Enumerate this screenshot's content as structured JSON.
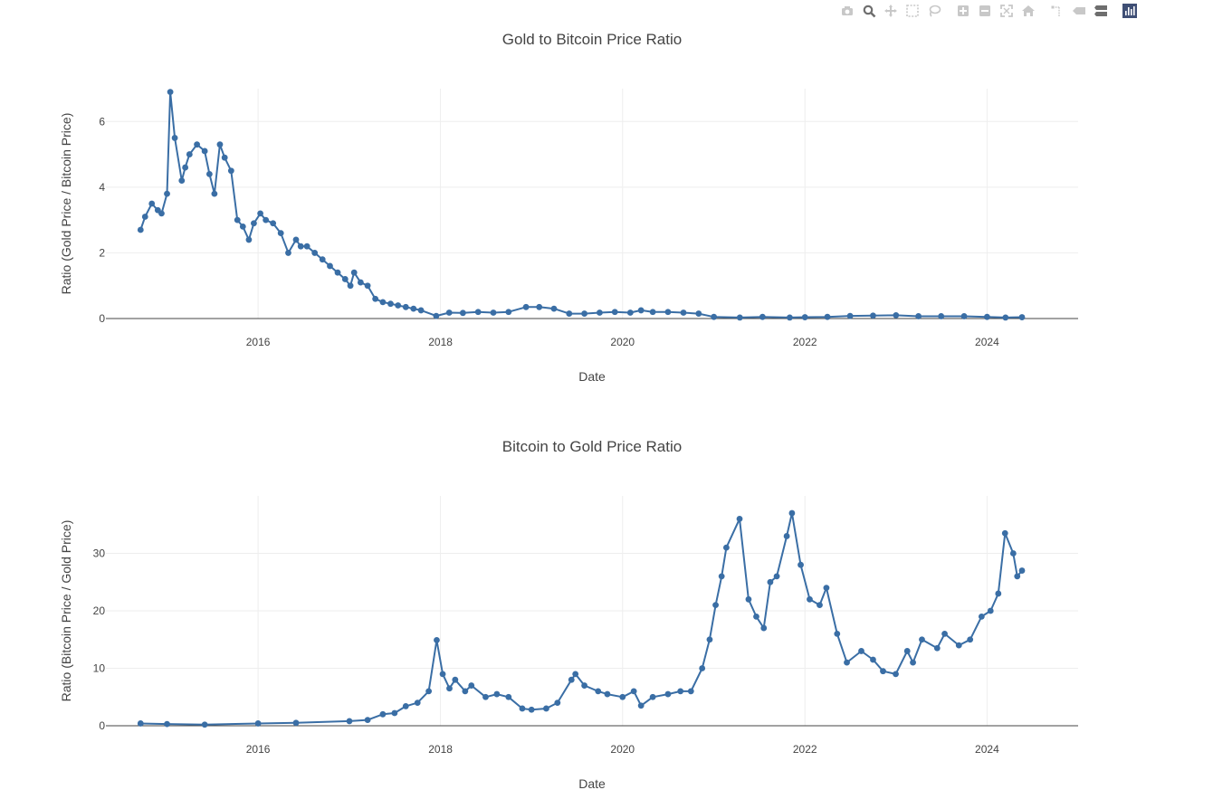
{
  "modebar": {
    "icons": [
      "camera-icon",
      "zoom-icon",
      "pan-icon",
      "box-select-icon",
      "lasso-select-icon",
      "zoom-in-icon",
      "zoom-out-icon",
      "autoscale-icon",
      "reset-axes-icon",
      "spike-lines-icon",
      "hover-closest-icon",
      "hover-compare-icon",
      "plotly-logo-icon"
    ]
  },
  "colors": {
    "series": "#3a6ea5",
    "grid": "#eeeeee",
    "axis_line": "#444444",
    "text": "#444444",
    "modebar_icon": "#c8c8c8",
    "modebar_active": "#6e6e6e"
  },
  "chart_data": [
    {
      "type": "line",
      "mode": "lines+markers",
      "title": "Gold to Bitcoin Price Ratio",
      "xlabel": "Date",
      "ylabel": "Ratio (Gold Price / Bitcoin Price)",
      "xlim": [
        "2014-05-01",
        "2024-12-31"
      ],
      "ylim": [
        0,
        7
      ],
      "xticks": [
        "2016",
        "2018",
        "2020",
        "2022",
        "2024"
      ],
      "yticks": [
        "0",
        "2",
        "4",
        "6"
      ],
      "grid": true,
      "legend": "none",
      "series": [
        {
          "x": [
            "2014-09-17",
            "2014-10-05",
            "2014-11-01",
            "2014-11-25",
            "2014-12-10",
            "2015-01-01",
            "2015-01-14",
            "2015-02-01",
            "2015-03-01",
            "2015-03-15",
            "2015-04-01",
            "2015-05-01",
            "2015-06-01",
            "2015-06-20",
            "2015-07-10",
            "2015-08-01",
            "2015-08-20",
            "2015-09-15",
            "2015-10-10",
            "2015-11-01",
            "2015-11-25",
            "2015-12-15",
            "2016-01-10",
            "2016-02-01",
            "2016-03-01",
            "2016-04-01",
            "2016-05-01",
            "2016-06-01",
            "2016-06-20",
            "2016-07-15",
            "2016-08-15",
            "2016-09-15",
            "2016-10-15",
            "2016-11-15",
            "2016-12-15",
            "2017-01-05",
            "2017-01-20",
            "2017-02-15",
            "2017-03-15",
            "2017-04-15",
            "2017-05-15",
            "2017-06-15",
            "2017-07-15",
            "2017-08-15",
            "2017-09-15",
            "2017-10-15",
            "2017-12-15",
            "2018-02-05",
            "2018-04-01",
            "2018-06-01",
            "2018-08-01",
            "2018-10-01",
            "2018-12-10",
            "2019-02-01",
            "2019-04-01",
            "2019-06-01",
            "2019-08-01",
            "2019-10-01",
            "2019-12-01",
            "2020-02-01",
            "2020-03-15",
            "2020-05-01",
            "2020-07-01",
            "2020-09-01",
            "2020-11-01",
            "2021-01-01",
            "2021-04-15",
            "2021-07-15",
            "2021-11-01",
            "2022-01-01",
            "2022-04-01",
            "2022-07-01",
            "2022-10-01",
            "2023-01-01",
            "2023-04-01",
            "2023-07-01",
            "2023-10-01",
            "2024-01-01",
            "2024-03-15",
            "2024-05-20"
          ],
          "y": [
            2.7,
            3.1,
            3.5,
            3.3,
            3.2,
            3.8,
            6.9,
            5.5,
            4.2,
            4.6,
            5.0,
            5.3,
            5.1,
            4.4,
            3.8,
            5.3,
            4.9,
            4.5,
            3.0,
            2.8,
            2.4,
            2.9,
            3.2,
            3.0,
            2.9,
            2.6,
            2.0,
            2.4,
            2.2,
            2.2,
            2.0,
            1.8,
            1.6,
            1.4,
            1.2,
            1.0,
            1.4,
            1.1,
            1.0,
            0.6,
            0.5,
            0.45,
            0.4,
            0.35,
            0.3,
            0.25,
            0.08,
            0.18,
            0.17,
            0.2,
            0.18,
            0.2,
            0.35,
            0.35,
            0.3,
            0.15,
            0.15,
            0.18,
            0.2,
            0.18,
            0.25,
            0.2,
            0.2,
            0.18,
            0.15,
            0.05,
            0.03,
            0.05,
            0.03,
            0.04,
            0.05,
            0.08,
            0.09,
            0.1,
            0.07,
            0.07,
            0.07,
            0.05,
            0.03,
            0.04
          ]
        }
      ]
    },
    {
      "type": "line",
      "mode": "lines+markers",
      "title": "Bitcoin to Gold Price Ratio",
      "xlabel": "Date",
      "ylabel": "Ratio (Bitcoin Price / Gold Price)",
      "xlim": [
        "2014-05-01",
        "2024-12-31"
      ],
      "ylim": [
        0,
        40
      ],
      "xticks": [
        "2016",
        "2018",
        "2020",
        "2022",
        "2024"
      ],
      "yticks": [
        "0",
        "10",
        "20",
        "30"
      ],
      "grid": true,
      "legend": "none",
      "series": [
        {
          "x": [
            "2014-09-17",
            "2015-01-01",
            "2015-06-01",
            "2016-01-01",
            "2016-06-01",
            "2017-01-01",
            "2017-03-15",
            "2017-05-15",
            "2017-07-01",
            "2017-08-15",
            "2017-10-01",
            "2017-11-15",
            "2017-12-17",
            "2018-01-10",
            "2018-02-06",
            "2018-03-01",
            "2018-04-10",
            "2018-05-05",
            "2018-07-01",
            "2018-08-15",
            "2018-10-01",
            "2018-11-25",
            "2019-01-01",
            "2019-03-01",
            "2019-04-15",
            "2019-06-10",
            "2019-06-26",
            "2019-08-01",
            "2019-09-25",
            "2019-11-01",
            "2020-01-01",
            "2020-02-15",
            "2020-03-15",
            "2020-05-01",
            "2020-07-01",
            "2020-08-20",
            "2020-10-01",
            "2020-11-15",
            "2020-12-15",
            "2021-01-08",
            "2021-02-01",
            "2021-02-20",
            "2021-04-14",
            "2021-05-20",
            "2021-06-20",
            "2021-07-20",
            "2021-08-15",
            "2021-09-10",
            "2021-10-20",
            "2021-11-10",
            "2021-12-15",
            "2022-01-20",
            "2022-03-01",
            "2022-03-28",
            "2022-05-10",
            "2022-06-18",
            "2022-08-15",
            "2022-10-01",
            "2022-11-10",
            "2022-12-31",
            "2023-02-15",
            "2023-03-10",
            "2023-04-15",
            "2023-06-15",
            "2023-07-15",
            "2023-09-10",
            "2023-10-25",
            "2023-12-10",
            "2024-01-15",
            "2024-02-15",
            "2024-03-13",
            "2024-04-15",
            "2024-05-01",
            "2024-05-20"
          ],
          "y": [
            0.4,
            0.3,
            0.2,
            0.4,
            0.5,
            0.8,
            1.0,
            2.0,
            2.2,
            3.4,
            4.0,
            6.0,
            14.9,
            9.0,
            6.5,
            8.0,
            6.0,
            7.0,
            5.0,
            5.5,
            5.0,
            3.0,
            2.8,
            3.0,
            4.0,
            8.0,
            9.0,
            7.0,
            6.0,
            5.5,
            5.0,
            6.0,
            3.5,
            5.0,
            5.5,
            6.0,
            6.0,
            10.0,
            15.0,
            21.0,
            26.0,
            31.0,
            36.0,
            22.0,
            19.0,
            17.0,
            25.0,
            26.0,
            33.0,
            37.0,
            28.0,
            22.0,
            21.0,
            24.0,
            16.0,
            11.0,
            13.0,
            11.5,
            9.5,
            9.0,
            13.0,
            11.0,
            15.0,
            13.5,
            16.0,
            14.0,
            15.0,
            19.0,
            20.0,
            23.0,
            33.5,
            30.0,
            26.0,
            27.0
          ]
        }
      ]
    }
  ]
}
